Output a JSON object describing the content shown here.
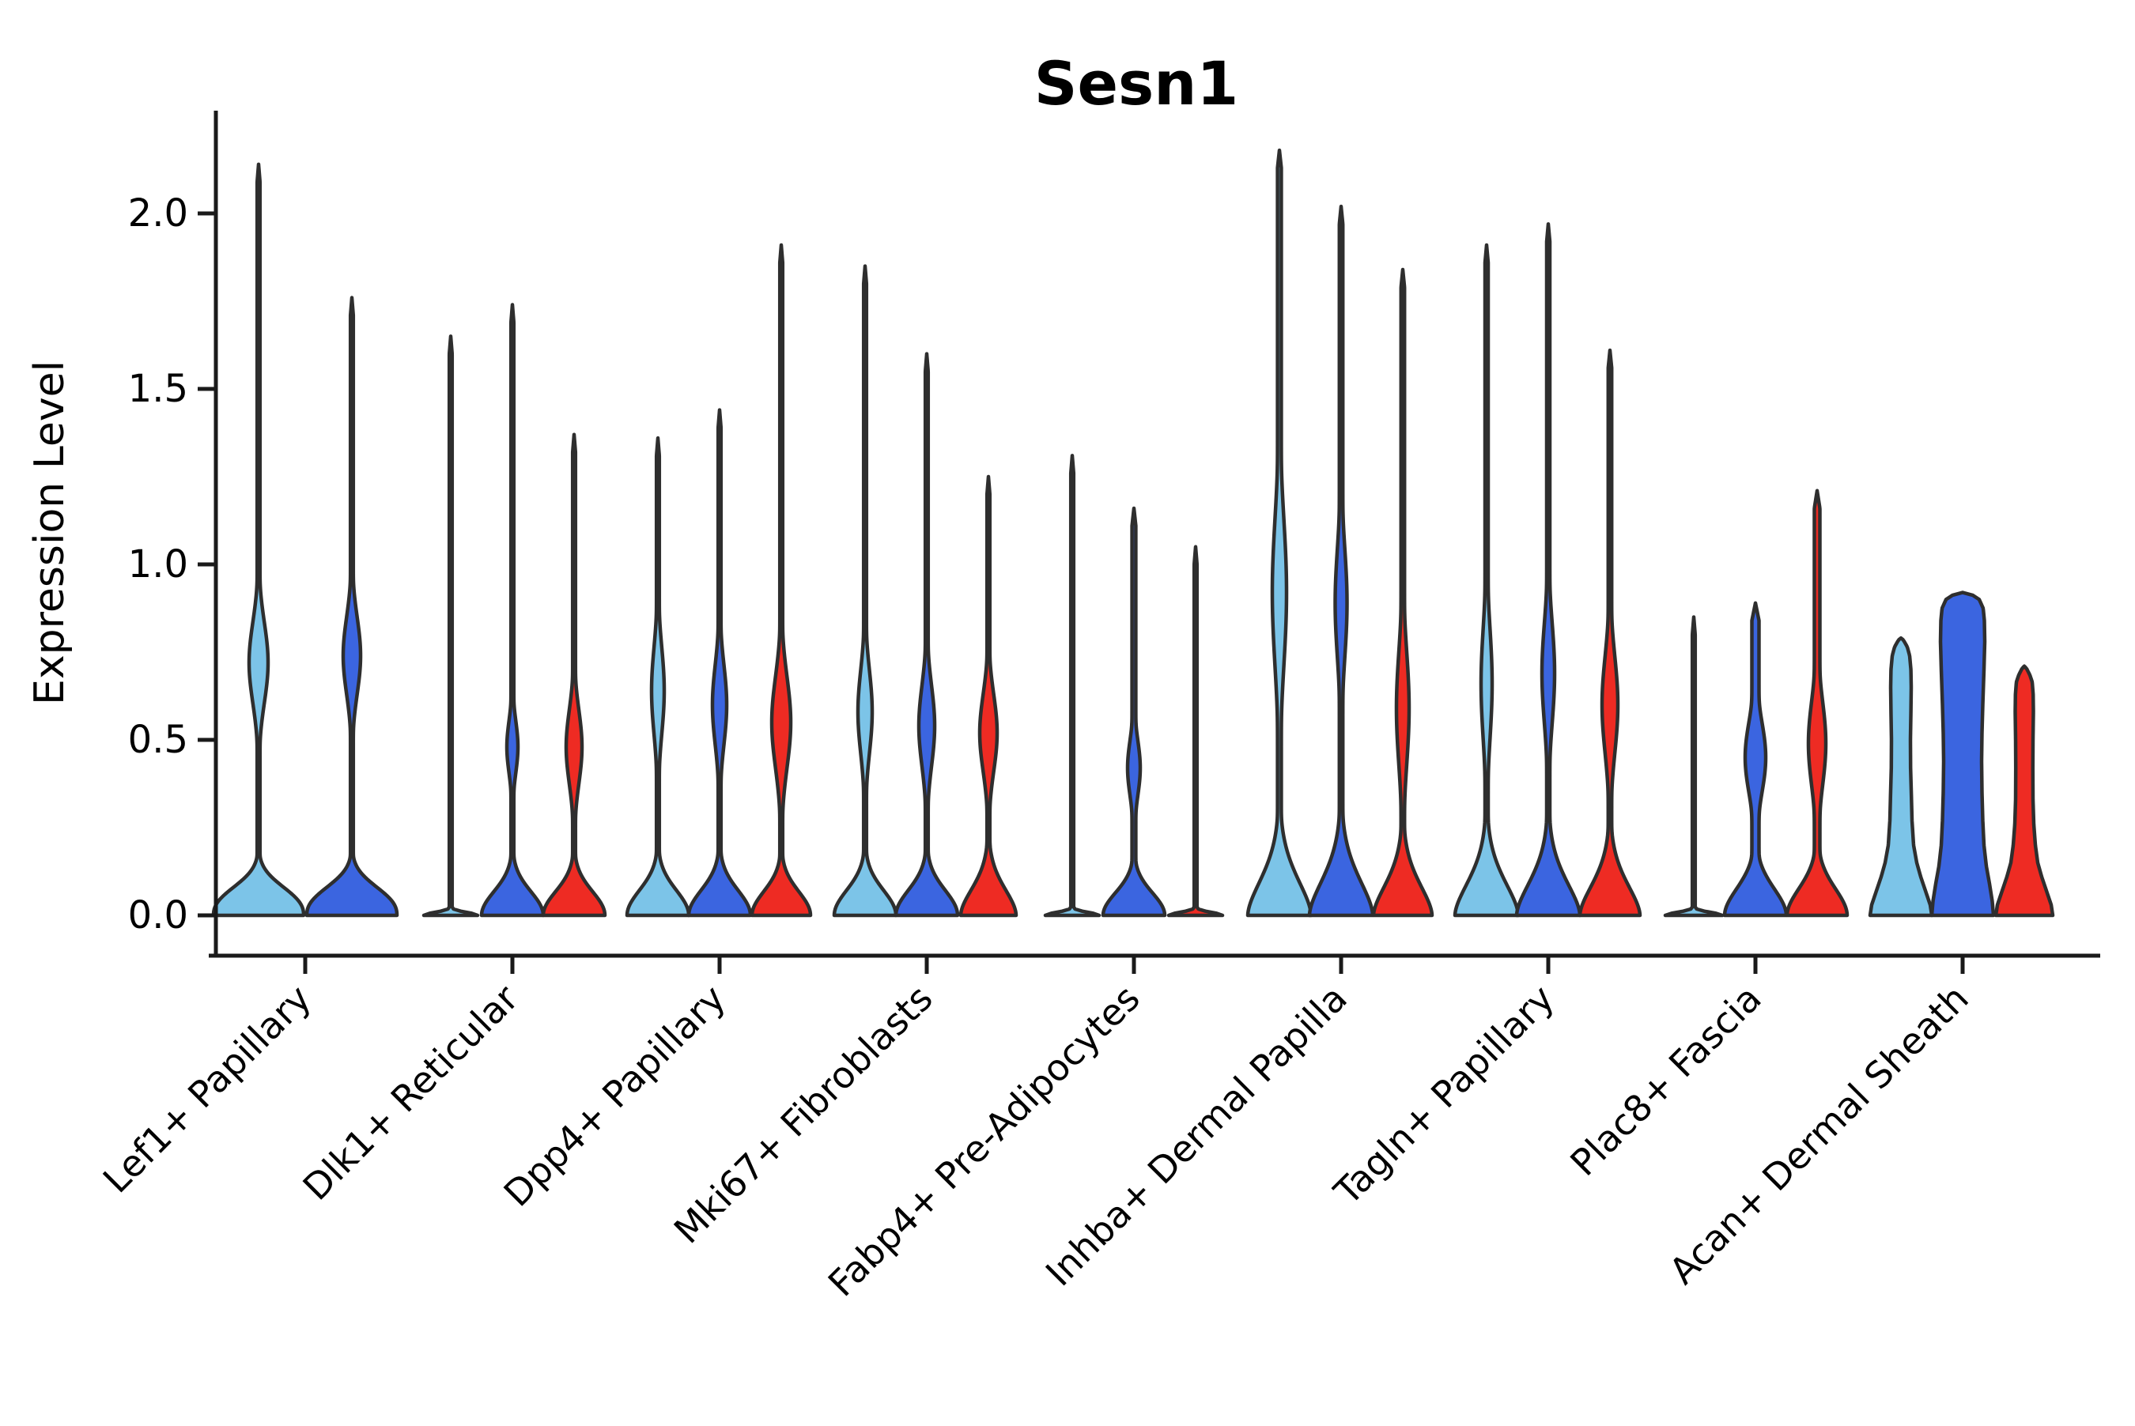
{
  "title": "Sesn1",
  "ylabel": "Expression Level",
  "chart_data": {
    "type": "violin",
    "title": "Sesn1",
    "xlabel": "",
    "ylabel": "Expression Level",
    "ylim": [
      -0.12,
      2.3
    ],
    "yticks": [
      0.0,
      0.5,
      1.0,
      1.5,
      2.0
    ],
    "ytick_labels": [
      "0.0",
      "0.5",
      "1.0",
      "1.5",
      "2.0"
    ],
    "grid": false,
    "legend": "none",
    "series_colors": [
      "#7CC4E8",
      "#3B65E0",
      "#EE2B23"
    ],
    "series_names": [
      "split-lightblue",
      "split-darkblue",
      "split-red"
    ],
    "outline_color": "#2E2E2E",
    "axis_color": "#1A1A1A",
    "note_shape_encoding": "Each violin: max = top of density spike (expression level); bulge = [center, halfspan, halfwidth-px] of expressing-cell lens; base = [halfwidth-px, decay-scale, decay-exponent] of zero-expression mound; kind v=violin l=line-only c=column profile [[value, halfwidth-px], ...]",
    "groups": [
      {
        "label": "Lef1+ Papillary",
        "violins": [
          {
            "series": 0,
            "kind": "v",
            "max": 2.14,
            "base": [
              57,
              0.1,
              2.4
            ],
            "stem": 1.8,
            "bulge": [
              0.72,
              0.23,
              12
            ]
          },
          {
            "series": 1,
            "kind": "v",
            "max": 1.76,
            "base": [
              57,
              0.1,
              2.4
            ],
            "stem": 1.8,
            "bulge": [
              0.74,
              0.22,
              11
            ]
          }
        ]
      },
      {
        "label": "Dlk1+ Reticular",
        "violins": [
          {
            "series": 0,
            "kind": "l",
            "max": 1.65,
            "base": [
              34,
              0.012,
              2.0
            ],
            "stem": 1.8
          },
          {
            "series": 1,
            "kind": "v",
            "max": 1.74,
            "base": [
              39,
              0.095,
              2.0
            ],
            "stem": 1.8,
            "bulge": [
              0.48,
              0.15,
              7
            ]
          },
          {
            "series": 2,
            "kind": "v",
            "max": 1.37,
            "base": [
              39,
              0.095,
              2.0
            ],
            "stem": 1.8,
            "bulge": [
              0.48,
              0.21,
              10
            ]
          }
        ]
      },
      {
        "label": "Dpp4+ Papillary",
        "violins": [
          {
            "series": 0,
            "kind": "v",
            "max": 1.36,
            "base": [
              39,
              0.1,
              2.0
            ],
            "stem": 1.8,
            "bulge": [
              0.64,
              0.25,
              8
            ]
          },
          {
            "series": 1,
            "kind": "v",
            "max": 1.44,
            "base": [
              39,
              0.1,
              2.0
            ],
            "stem": 1.8,
            "bulge": [
              0.6,
              0.23,
              9
            ]
          },
          {
            "series": 2,
            "kind": "v",
            "max": 1.91,
            "base": [
              37,
              0.095,
              2.0
            ],
            "stem": 1.8,
            "bulge": [
              0.55,
              0.26,
              12
            ]
          }
        ]
      },
      {
        "label": "Mki67+ Fibroblasts",
        "violins": [
          {
            "series": 0,
            "kind": "v",
            "max": 1.85,
            "base": [
              39,
              0.1,
              2.0
            ],
            "stem": 1.8,
            "bulge": [
              0.58,
              0.24,
              9
            ]
          },
          {
            "series": 1,
            "kind": "v",
            "max": 1.6,
            "base": [
              39,
              0.1,
              2.0
            ],
            "stem": 1.8,
            "bulge": [
              0.54,
              0.23,
              10
            ]
          },
          {
            "series": 2,
            "kind": "v",
            "max": 1.25,
            "base": [
              35,
              0.11,
              1.8
            ],
            "stem": 1.8,
            "bulge": [
              0.52,
              0.22,
              11
            ]
          }
        ]
      },
      {
        "label": "Fabp4+ Pre-Adipocytes",
        "violins": [
          {
            "series": 0,
            "kind": "l",
            "max": 1.31,
            "base": [
              34,
              0.012,
              2.0
            ],
            "stem": 1.8
          },
          {
            "series": 1,
            "kind": "v",
            "max": 1.16,
            "base": [
              39,
              0.09,
              2.0
            ],
            "stem": 2.4,
            "bulge": [
              0.42,
              0.16,
              8
            ]
          },
          {
            "series": 2,
            "kind": "l",
            "max": 1.05,
            "base": [
              34,
              0.012,
              2.0
            ],
            "stem": 1.8
          }
        ]
      },
      {
        "label": "Inhba+ Dermal Papilla",
        "violins": [
          {
            "series": 0,
            "kind": "v",
            "max": 2.18,
            "base": [
              40,
              0.15,
              1.7
            ],
            "stem": 2.4,
            "bulge": [
              0.92,
              0.43,
              9
            ]
          },
          {
            "series": 1,
            "kind": "v",
            "max": 2.02,
            "base": [
              40,
              0.15,
              1.7
            ],
            "stem": 2.2,
            "bulge": [
              0.89,
              0.32,
              7.5
            ]
          },
          {
            "series": 2,
            "kind": "v",
            "max": 1.84,
            "base": [
              37,
              0.13,
              1.7
            ],
            "stem": 2.2,
            "bulge": [
              0.59,
              0.33,
              8
            ]
          }
        ]
      },
      {
        "label": "Tagln+ Papillary",
        "violins": [
          {
            "series": 0,
            "kind": "v",
            "max": 1.91,
            "base": [
              40,
              0.14,
              1.7
            ],
            "stem": 2.0,
            "bulge": [
              0.66,
              0.32,
              7
            ]
          },
          {
            "series": 1,
            "kind": "v",
            "max": 1.97,
            "base": [
              40,
              0.14,
              1.7
            ],
            "stem": 2.0,
            "bulge": [
              0.69,
              0.29,
              8
            ]
          },
          {
            "series": 2,
            "kind": "v",
            "max": 1.61,
            "base": [
              38,
              0.13,
              1.7
            ],
            "stem": 2.2,
            "bulge": [
              0.6,
              0.28,
              10
            ]
          }
        ]
      },
      {
        "label": "Plac8+ Fascia",
        "violins": [
          {
            "series": 0,
            "kind": "l",
            "max": 0.85,
            "base": [
              36,
              0.012,
              2.0
            ],
            "stem": 1.8
          },
          {
            "series": 1,
            "kind": "v",
            "max": 0.89,
            "base": [
              39,
              0.11,
              1.9
            ],
            "stem": 4.5,
            "bulge": [
              0.45,
              0.21,
              13
            ]
          },
          {
            "series": 2,
            "kind": "v",
            "max": 1.21,
            "base": [
              38,
              0.11,
              1.9
            ],
            "stem": 3.5,
            "bulge": [
              0.49,
              0.25,
              11
            ]
          }
        ]
      },
      {
        "label": "Acan+ Dermal Sheath",
        "violins": [
          {
            "series": 0,
            "kind": "c",
            "max": 0.79,
            "profile": [
              [
                0,
                39
              ],
              [
                0.03,
                37
              ],
              [
                0.07,
                31
              ],
              [
                0.11,
                25
              ],
              [
                0.15,
                20
              ],
              [
                0.2,
                16
              ],
              [
                0.27,
                14
              ],
              [
                0.34,
                13.2
              ],
              [
                0.42,
                12.2
              ],
              [
                0.5,
                12
              ],
              [
                0.58,
                12.6
              ],
              [
                0.65,
                13
              ],
              [
                0.7,
                12.6
              ],
              [
                0.74,
                11
              ],
              [
                0.765,
                8
              ],
              [
                0.785,
                3
              ],
              [
                0.79,
                0
              ]
            ]
          },
          {
            "series": 1,
            "kind": "c",
            "max": 0.92,
            "profile": [
              [
                0,
                39
              ],
              [
                0.04,
                37.5
              ],
              [
                0.09,
                34
              ],
              [
                0.14,
                30
              ],
              [
                0.2,
                27
              ],
              [
                0.27,
                25.5
              ],
              [
                0.35,
                24.5
              ],
              [
                0.44,
                24
              ],
              [
                0.52,
                24.5
              ],
              [
                0.6,
                25.5
              ],
              [
                0.7,
                27
              ],
              [
                0.78,
                28
              ],
              [
                0.84,
                27.5
              ],
              [
                0.875,
                26
              ],
              [
                0.9,
                21
              ],
              [
                0.912,
                13
              ],
              [
                0.92,
                0
              ]
            ]
          },
          {
            "series": 2,
            "kind": "c",
            "max": 0.71,
            "profile": [
              [
                0,
                36
              ],
              [
                0.03,
                34
              ],
              [
                0.07,
                28
              ],
              [
                0.11,
                22
              ],
              [
                0.15,
                17
              ],
              [
                0.2,
                14
              ],
              [
                0.26,
                12
              ],
              [
                0.33,
                11
              ],
              [
                0.42,
                10.8
              ],
              [
                0.5,
                11
              ],
              [
                0.58,
                11.5
              ],
              [
                0.63,
                11.2
              ],
              [
                0.665,
                10
              ],
              [
                0.685,
                7
              ],
              [
                0.705,
                2.5
              ],
              [
                0.71,
                0
              ]
            ]
          }
        ]
      }
    ]
  }
}
